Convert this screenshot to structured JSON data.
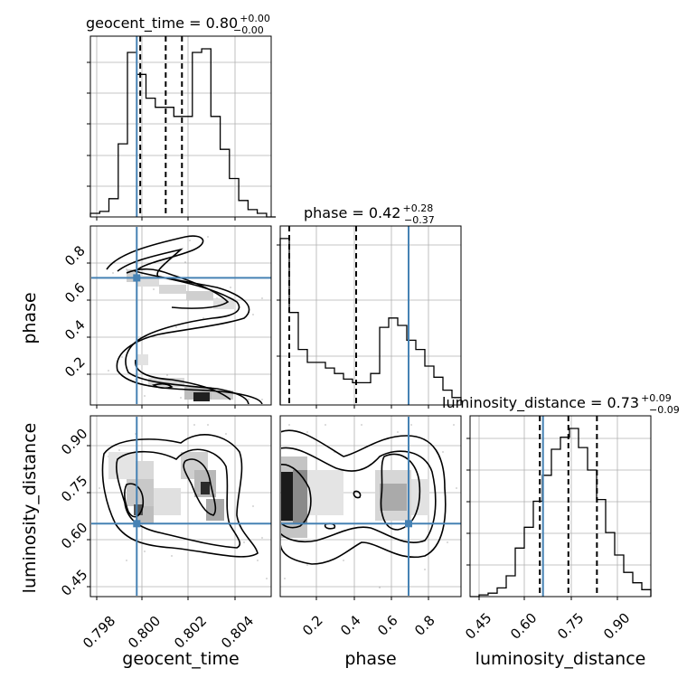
{
  "chart_data": {
    "type": "corner",
    "parameters": [
      {
        "name": "geocent_time",
        "label": "geocent_time",
        "range": [
          0.7976,
          0.8054
        ],
        "ticks": [
          0.798,
          0.8,
          0.802,
          0.804
        ],
        "tick_labels": [
          "0.798",
          "0.800",
          "0.802",
          "0.804"
        ],
        "truth": 0.7996
      },
      {
        "name": "phase",
        "label": "phase",
        "range": [
          0.0,
          1.0
        ],
        "ticks": [
          0.2,
          0.4,
          0.6,
          0.8
        ],
        "tick_labels": [
          "0.2",
          "0.4",
          "0.6",
          "0.8"
        ],
        "truth": 0.71
      },
      {
        "name": "luminosity_distance",
        "label": "luminosity_distance",
        "range": [
          0.42,
          0.99
        ],
        "ticks": [
          0.45,
          0.6,
          0.75,
          0.9
        ],
        "tick_labels": [
          "0.45",
          "0.60",
          "0.75",
          "0.90"
        ],
        "truth": 0.65
      }
    ],
    "diagonal": [
      {
        "parameter": "geocent_time",
        "title": "geocent_time = 0.80",
        "title_value": "geocent_time = 0.80",
        "title_plus": "+0.00",
        "title_minus": "−0.00",
        "quantiles": [
          0.79975,
          0.80085,
          0.80155
        ],
        "bin_edges": [
          0.7976,
          0.798,
          0.7984,
          0.7988,
          0.7992,
          0.7996,
          0.8,
          0.8004,
          0.8008,
          0.8012,
          0.8016,
          0.802,
          0.8024,
          0.8028,
          0.8032,
          0.8036,
          0.804,
          0.8044,
          0.8048,
          0.8052,
          0.8056
        ],
        "counts": [
          0.02,
          0.03,
          0.1,
          0.4,
          0.9,
          0.78,
          0.65,
          0.6,
          0.6,
          0.55,
          0.55,
          0.9,
          0.92,
          0.55,
          0.37,
          0.21,
          0.09,
          0.04,
          0.02,
          0.0
        ]
      },
      {
        "parameter": "phase",
        "title_value": "phase = 0.42",
        "title_plus": "+0.28",
        "title_minus": "−0.37",
        "quantiles": [
          0.05,
          0.42,
          0.71
        ],
        "bin_edges": [
          0.0,
          0.05,
          0.1,
          0.15,
          0.2,
          0.25,
          0.3,
          0.35,
          0.4,
          0.45,
          0.5,
          0.55,
          0.6,
          0.65,
          0.7,
          0.75,
          0.8,
          0.85,
          0.9,
          0.95,
          1.0
        ],
        "counts": [
          0.9,
          0.5,
          0.3,
          0.23,
          0.23,
          0.2,
          0.17,
          0.14,
          0.12,
          0.12,
          0.17,
          0.42,
          0.47,
          0.43,
          0.35,
          0.3,
          0.21,
          0.15,
          0.08,
          0.04
        ]
      },
      {
        "parameter": "luminosity_distance",
        "title_value": "luminosity_distance = 0.73",
        "title_plus": "+0.09",
        "title_minus": "−0.09",
        "quantiles": [
          0.64,
          0.73,
          0.82
        ],
        "bin_edges": [
          0.42,
          0.4485,
          0.477,
          0.5055,
          0.534,
          0.5625,
          0.591,
          0.6195,
          0.648,
          0.6765,
          0.705,
          0.7335,
          0.762,
          0.7905,
          0.819,
          0.8475,
          0.876,
          0.9045,
          0.933,
          0.9615,
          0.99
        ],
        "counts": [
          0.0,
          0.01,
          0.02,
          0.05,
          0.12,
          0.28,
          0.4,
          0.55,
          0.7,
          0.85,
          0.92,
          0.97,
          0.86,
          0.73,
          0.56,
          0.37,
          0.24,
          0.14,
          0.08,
          0.04
        ]
      }
    ],
    "pairs": [
      {
        "x": "geocent_time",
        "y": "phase"
      },
      {
        "x": "geocent_time",
        "y": "luminosity_distance"
      },
      {
        "x": "phase",
        "y": "luminosity_distance"
      }
    ],
    "grid": true,
    "truth_color": "#4682b4",
    "line_color": "#000000"
  }
}
